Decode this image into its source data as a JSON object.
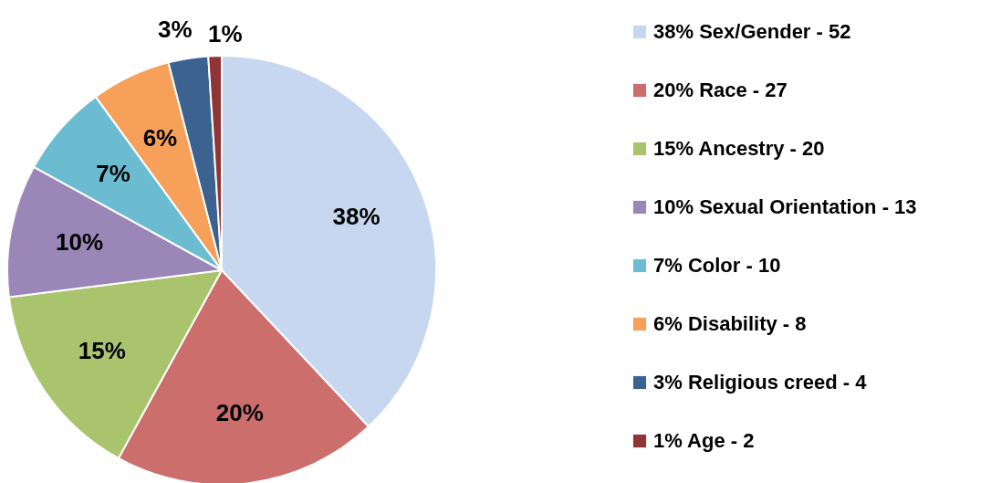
{
  "chart_data": {
    "type": "pie",
    "categories": [
      "38% Sex/Gender - 52",
      "20% Race - 27",
      "15% Ancestry - 20",
      "10% Sexual Orientation - 13",
      "7% Color - 10",
      "6% Disability - 8",
      "3% Religious creed - 4",
      "1% Age - 2"
    ],
    "values": [
      38,
      20,
      15,
      10,
      7,
      6,
      3,
      1
    ],
    "value_labels": [
      "38%",
      "20%",
      "15%",
      "10%",
      "7%",
      "6%",
      "3%",
      "1%"
    ],
    "colors": [
      "#c6d7ef",
      "#cc6e6c",
      "#a9c46c",
      "#9b86b8",
      "#6bbcd1",
      "#f6a05a",
      "#3c6290",
      "#8e3535"
    ],
    "legend": "right"
  }
}
